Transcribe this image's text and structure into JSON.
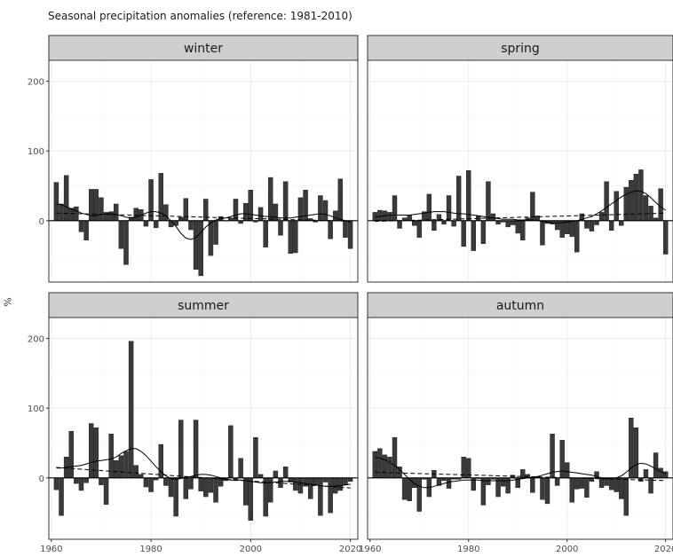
{
  "chart_data": {
    "type": "bar",
    "title": "Seasonal precipitation anomalies (reference: 1981-2010)",
    "ylabel": "%",
    "xlabel": "",
    "layout": "2x2 facets",
    "x": [
      1961,
      1962,
      1963,
      1964,
      1965,
      1966,
      1967,
      1968,
      1969,
      1970,
      1971,
      1972,
      1973,
      1974,
      1975,
      1976,
      1977,
      1978,
      1979,
      1980,
      1981,
      1982,
      1983,
      1984,
      1985,
      1986,
      1987,
      1988,
      1989,
      1990,
      1991,
      1992,
      1993,
      1994,
      1995,
      1996,
      1997,
      1998,
      1999,
      2000,
      2001,
      2002,
      2003,
      2004,
      2005,
      2006,
      2007,
      2008,
      2009,
      2010,
      2011,
      2012,
      2013,
      2014,
      2015,
      2016,
      2017,
      2018,
      2019,
      2020
    ],
    "xticks": [
      1960,
      1980,
      2000,
      2020
    ],
    "yticks": [
      0,
      100,
      200
    ],
    "xlim": [
      1959.5,
      2021.5
    ],
    "ylim": [
      -88,
      230
    ],
    "grid": true,
    "colors": {
      "bar": "#3a3a3a",
      "strip": "#cfcfcf",
      "zero_line": "#000000",
      "smooth_line": "#000000",
      "grid": "#ebebeb"
    },
    "panels": [
      {
        "name": "winter",
        "values": [
          55,
          24,
          65,
          18,
          20,
          -16,
          -28,
          45,
          45,
          33,
          12,
          13,
          24,
          -40,
          -63,
          5,
          18,
          16,
          -8,
          59,
          -10,
          68,
          23,
          -9,
          -7,
          5,
          32,
          -13,
          -70,
          -79,
          31,
          -50,
          -34,
          6,
          0,
          4,
          31,
          -4,
          25,
          44,
          -2,
          19,
          -38,
          62,
          24,
          -21,
          56,
          -47,
          -46,
          33,
          44,
          3,
          -2,
          36,
          29,
          -26,
          14,
          60,
          -24,
          -40
        ],
        "smooth": [
          24,
          23,
          20,
          17,
          14,
          11,
          9,
          7,
          7,
          9,
          10,
          10,
          9,
          7,
          5,
          4,
          5,
          8,
          11,
          13,
          13,
          11,
          7,
          0,
          -8,
          -18,
          -25,
          -27,
          -24,
          -17,
          -9,
          -3,
          1,
          3,
          4,
          6,
          8,
          10,
          10,
          9,
          8,
          7,
          6,
          6,
          5,
          4,
          4,
          4,
          5,
          6,
          7,
          8,
          9,
          10,
          9,
          7,
          4,
          2,
          0,
          -2
        ],
        "trend": [
          11,
          10.8,
          10.6,
          10.4,
          10.2,
          10,
          9.8,
          9.6,
          9.4,
          9.2,
          9,
          8.8,
          8.6,
          8.4,
          8.2,
          8,
          7.8,
          7.6,
          7.4,
          7.2,
          7,
          6.8,
          6.6,
          6.4,
          6.2,
          6,
          5.8,
          5.6,
          5.4,
          5.2,
          5,
          4.8,
          4.6,
          4.4,
          4.2,
          4,
          3.8,
          3.6,
          3.4,
          3.2,
          3,
          2.8,
          2.6,
          2.4,
          2.2,
          2,
          1.8,
          1.6,
          1.4,
          1.2,
          1,
          0.8,
          0.6,
          0.4,
          0.2,
          0,
          -0.2,
          -0.4,
          -0.6,
          -0.8
        ]
      },
      {
        "name": "spring",
        "values": [
          12,
          15,
          14,
          12,
          36,
          -11,
          4,
          8,
          -7,
          -24,
          13,
          38,
          -14,
          9,
          -5,
          36,
          -8,
          64,
          -37,
          72,
          -43,
          7,
          -33,
          56,
          10,
          -5,
          -2,
          -9,
          -6,
          -18,
          -28,
          4,
          41,
          7,
          -35,
          -4,
          -5,
          -13,
          -24,
          -19,
          -23,
          -45,
          10,
          -11,
          -15,
          -6,
          12,
          56,
          -14,
          42,
          -7,
          48,
          58,
          67,
          73,
          36,
          21,
          4,
          46,
          -48
        ],
        "smooth": [
          5,
          6,
          7,
          8,
          8,
          8,
          8,
          8,
          9,
          10,
          11,
          12,
          13,
          13,
          13,
          12,
          11,
          10,
          10,
          9,
          8,
          7,
          6,
          5,
          4,
          3,
          2,
          2,
          2,
          1,
          1,
          1,
          1,
          0,
          -1,
          -2,
          -3,
          -3,
          -3,
          -2,
          -1,
          0,
          2,
          4,
          6,
          10,
          14,
          19,
          24,
          29,
          34,
          38,
          41,
          43,
          42,
          39,
          33,
          26,
          20,
          15
        ],
        "trend": [
          -1,
          -0.8,
          -0.6,
          -0.4,
          -0.2,
          0,
          0.2,
          0.4,
          0.6,
          0.8,
          1,
          1.2,
          1.4,
          1.6,
          1.8,
          2,
          2.2,
          2.4,
          2.6,
          2.8,
          3,
          3.2,
          3.4,
          3.6,
          3.8,
          4,
          4.2,
          4.4,
          4.6,
          4.8,
          5,
          5.2,
          5.4,
          5.6,
          5.8,
          6,
          6.2,
          6.4,
          6.6,
          6.8,
          7,
          7.2,
          7.4,
          7.6,
          7.8,
          8,
          8.2,
          8.4,
          8.6,
          8.8,
          9,
          9.2,
          9.4,
          9.6,
          9.8,
          10,
          10.2,
          10.4,
          10.6,
          10.8
        ]
      },
      {
        "name": "summer",
        "values": [
          -17,
          -54,
          30,
          67,
          -8,
          -18,
          -7,
          78,
          72,
          -10,
          -38,
          63,
          25,
          32,
          38,
          196,
          18,
          5,
          -13,
          -20,
          -3,
          48,
          -11,
          -27,
          -55,
          83,
          -30,
          -16,
          83,
          -19,
          -27,
          -21,
          -35,
          -12,
          -4,
          75,
          -4,
          28,
          -39,
          -61,
          58,
          5,
          -55,
          -35,
          10,
          -14,
          16,
          -6,
          -18,
          -22,
          -12,
          -30,
          -10,
          -54,
          -6,
          -50,
          -22,
          -18,
          -10,
          -5
        ],
        "smooth": [
          14,
          14,
          15,
          16,
          17,
          18,
          20,
          22,
          24,
          25,
          26,
          27,
          30,
          35,
          39,
          42,
          42,
          38,
          32,
          24,
          16,
          9,
          3,
          -1,
          -2,
          -1,
          1,
          2,
          4,
          5,
          5,
          4,
          2,
          0,
          -2,
          -3,
          -3,
          -3,
          -4,
          -5,
          -6,
          -7,
          -7,
          -7,
          -6,
          -5,
          -5,
          -5,
          -6,
          -7,
          -8,
          -9,
          -10,
          -11,
          -12,
          -12,
          -12,
          -11,
          -10,
          -9
        ],
        "trend": [
          15,
          14.5,
          14,
          13.5,
          13,
          12.5,
          12,
          11.5,
          11,
          10.5,
          10,
          9.5,
          9,
          8.5,
          8,
          7.5,
          7,
          6.5,
          6,
          5.5,
          5,
          4.5,
          4,
          3.5,
          3,
          2.5,
          2,
          1.5,
          1,
          0.5,
          0,
          -0.5,
          -1,
          -1.5,
          -2,
          -2.5,
          -3,
          -3.5,
          -4,
          -4.5,
          -5,
          -5.5,
          -6,
          -6.5,
          -7,
          -7.5,
          -8,
          -8.5,
          -9,
          -9.5,
          -10,
          -10.5,
          -11,
          -11.5,
          -12,
          -12.5,
          -13,
          -13.5,
          -14,
          -14.5
        ]
      },
      {
        "name": "autumn",
        "values": [
          38,
          42,
          33,
          30,
          58,
          16,
          -31,
          -33,
          -14,
          -48,
          -2,
          -27,
          11,
          -11,
          -4,
          -15,
          -2,
          -2,
          30,
          28,
          -18,
          -1,
          -39,
          -10,
          -2,
          -27,
          -12,
          -22,
          4,
          -14,
          12,
          5,
          -21,
          2,
          -31,
          -37,
          63,
          -11,
          54,
          22,
          -35,
          -16,
          -15,
          -28,
          -5,
          9,
          -14,
          -11,
          -17,
          -20,
          -30,
          -54,
          86,
          72,
          -5,
          12,
          -22,
          36,
          14,
          9
        ],
        "smooth": [
          30,
          28,
          26,
          22,
          18,
          12,
          5,
          -2,
          -8,
          -12,
          -14,
          -14,
          -12,
          -10,
          -8,
          -6,
          -5,
          -4,
          -3,
          -3,
          -3,
          -3,
          -4,
          -4,
          -4,
          -4,
          -4,
          -4,
          -3,
          -2,
          -1,
          0,
          1,
          2,
          4,
          6,
          8,
          9,
          10,
          9,
          8,
          7,
          6,
          5,
          4,
          2,
          0,
          -1,
          -1,
          0,
          3,
          8,
          14,
          19,
          21,
          20,
          17,
          13,
          9,
          6
        ],
        "trend": [
          8,
          7.8,
          7.6,
          7.4,
          7.2,
          7,
          6.8,
          6.6,
          6.4,
          6.2,
          6,
          5.8,
          5.6,
          5.4,
          5.2,
          5,
          4.8,
          4.6,
          4.4,
          4.2,
          4,
          3.8,
          3.6,
          3.4,
          3.2,
          3,
          2.8,
          2.6,
          2.4,
          2.2,
          2,
          1.8,
          1.6,
          1.4,
          1.2,
          1,
          0.8,
          0.6,
          0.4,
          0.2,
          0,
          -0.2,
          -0.4,
          -0.6,
          -0.8,
          -1,
          -1.2,
          -1.4,
          -1.6,
          -1.8,
          -2,
          -2.2,
          -2.4,
          -2.6,
          -2.8,
          -3,
          -3.2,
          -3.4,
          -3.6,
          -3.8
        ]
      }
    ]
  }
}
